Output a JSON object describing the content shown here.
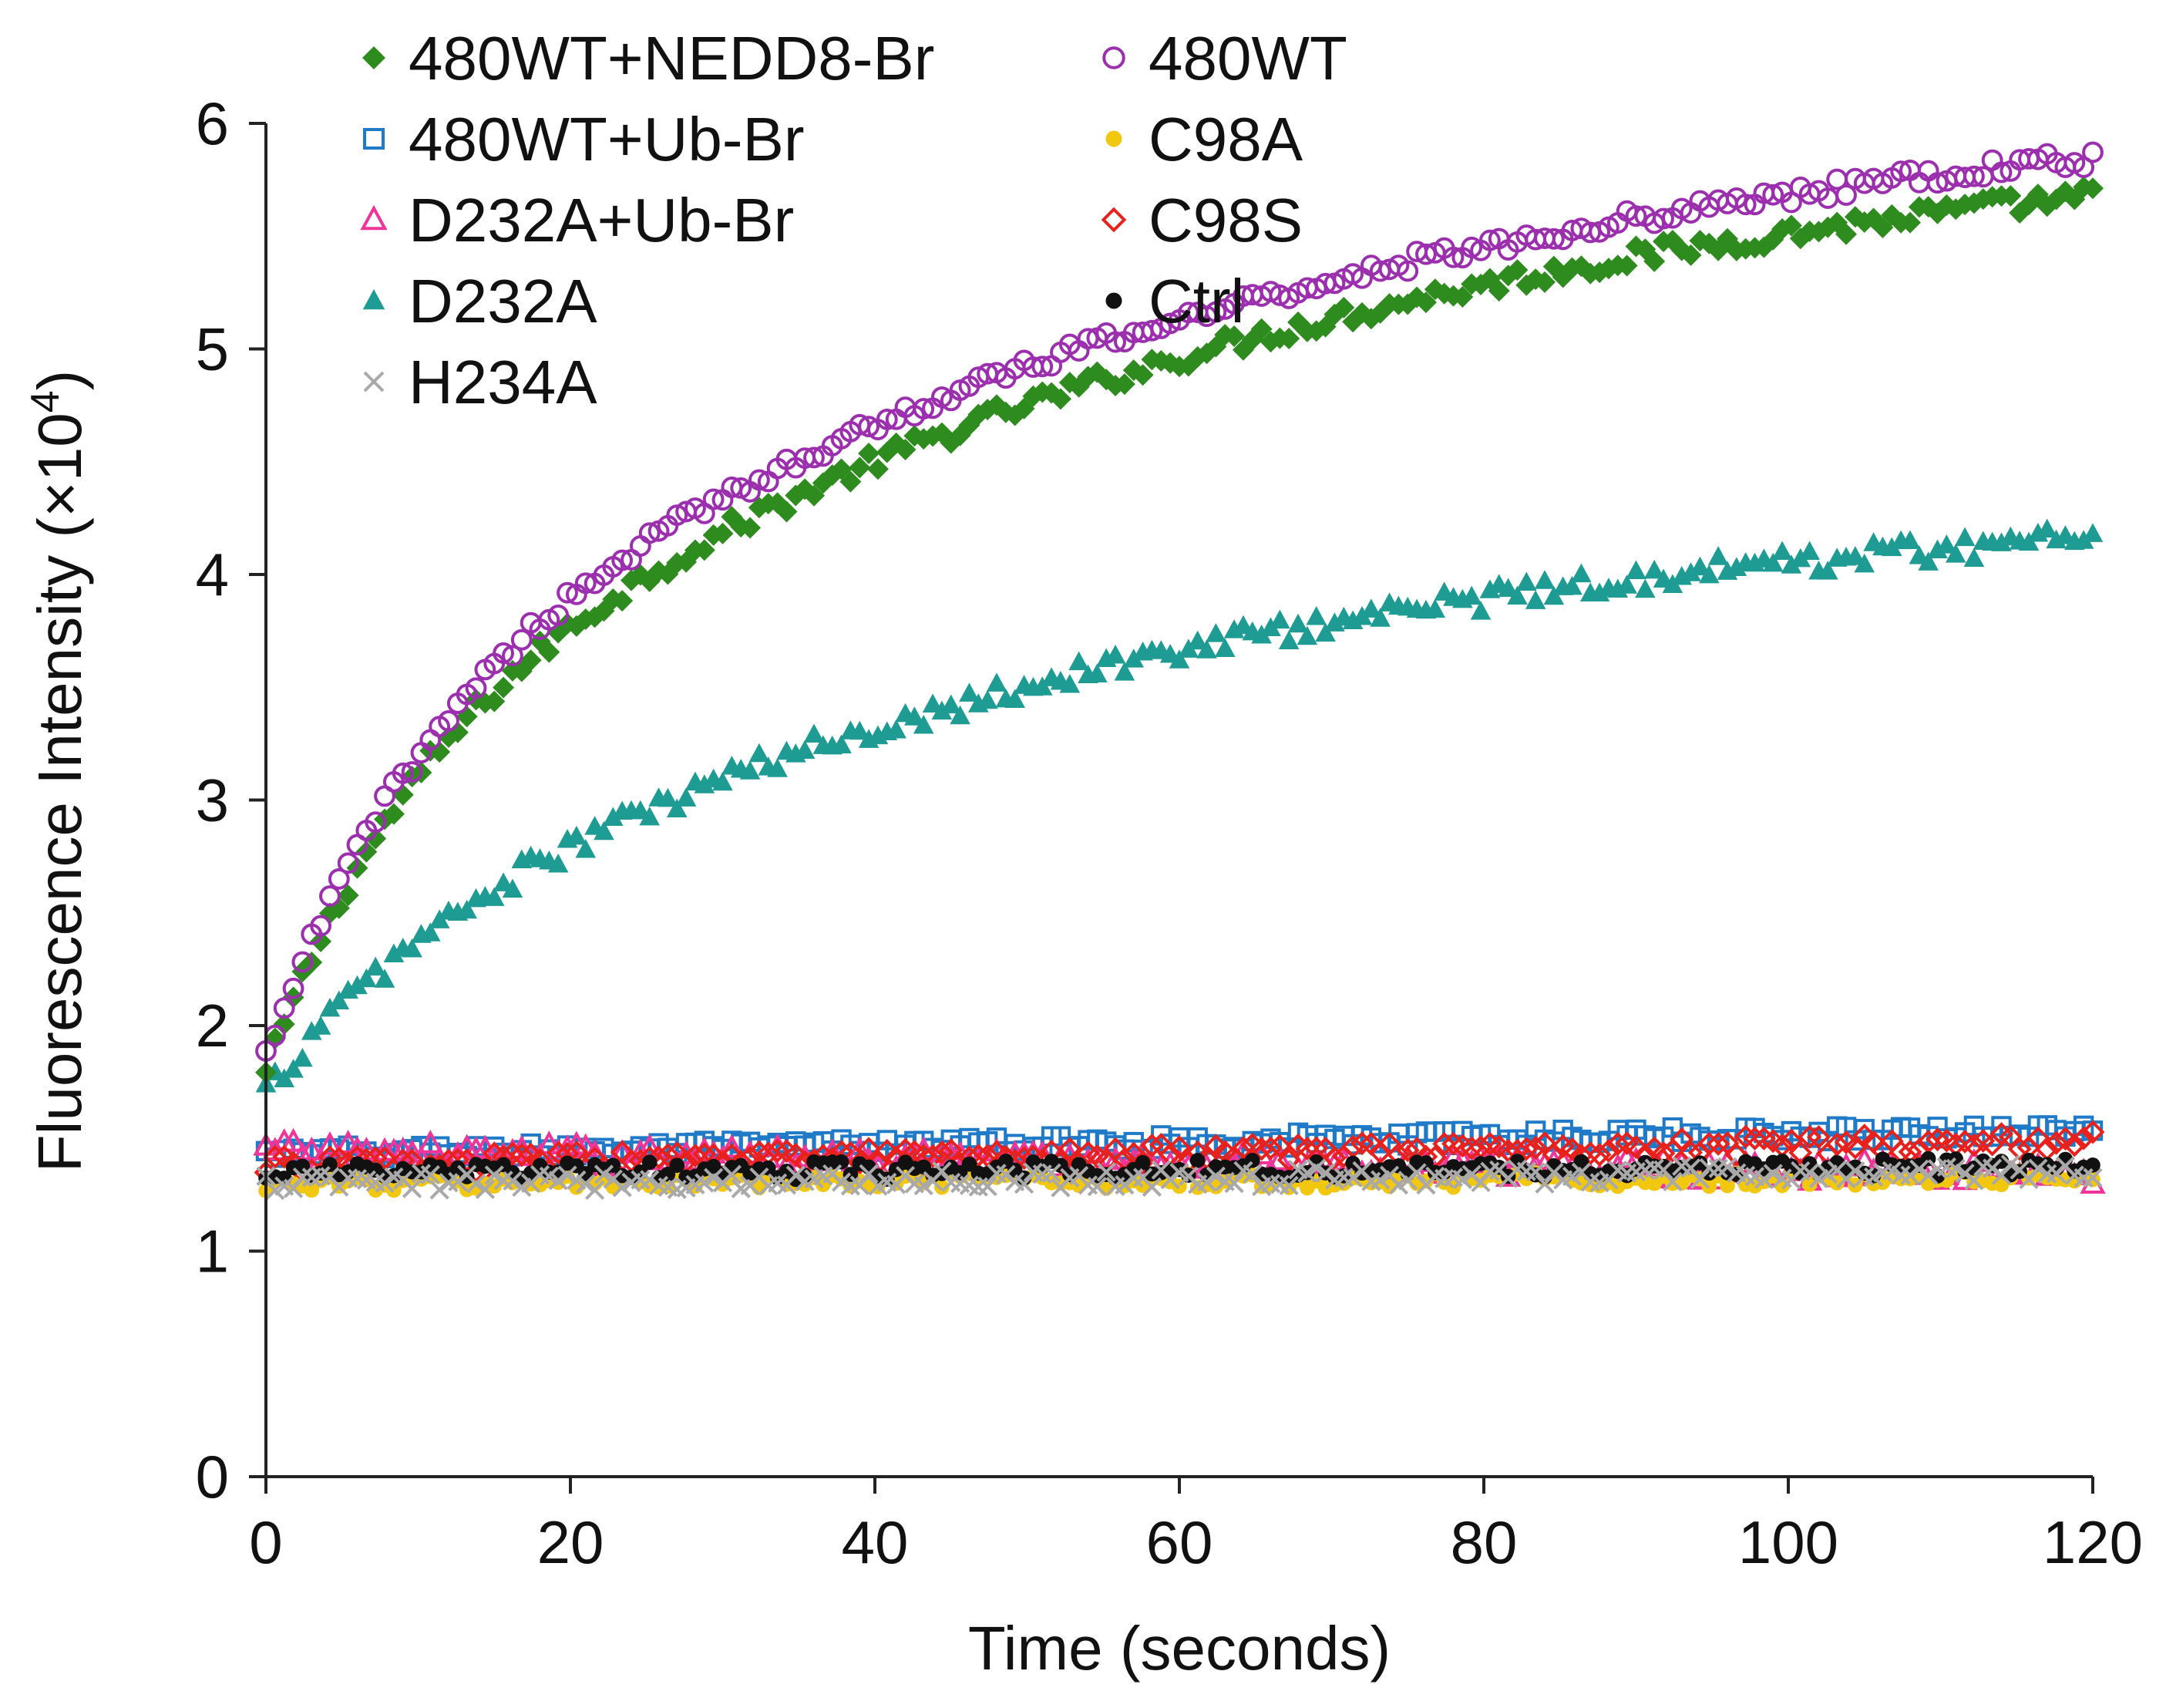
{
  "chart_data": {
    "type": "scatter",
    "title": "",
    "xlabel": "Time (seconds)",
    "ylabel": "Fluorescence Intensity (×10",
    "ylabel_sup": "4",
    "ylabel_close": ")",
    "xlim": [
      0,
      120
    ],
    "ylim": [
      0,
      6
    ],
    "xticks": [
      0,
      20,
      40,
      60,
      80,
      100,
      120
    ],
    "yticks": [
      0,
      1,
      2,
      3,
      4,
      5,
      6
    ],
    "grid": false,
    "legend_position": "top-left",
    "sampling": {
      "x_start": 0,
      "x_step": 0.6,
      "n": 201
    },
    "series": [
      {
        "name": "480WT+NEDD8-Br",
        "marker": "diamond-filled",
        "color": "#2E8B1E",
        "model": {
          "type": "exp2",
          "y0": 1.78,
          "a1": 1.2,
          "k1": 0.12,
          "a2": 3.1,
          "k2": 0.017,
          "noise": 0.05
        }
      },
      {
        "name": "480WT+Ub-Br",
        "marker": "square-open",
        "color": "#1F7AC8",
        "model": {
          "type": "linear",
          "y0": 1.43,
          "slope": 0.0009,
          "noise": 0.035
        }
      },
      {
        "name": "D232A+Ub-Br",
        "marker": "triangle-open",
        "color": "#F0359A",
        "model": {
          "type": "linear",
          "y0": 1.44,
          "slope": -0.0008,
          "noise": 0.05
        }
      },
      {
        "name": "D232A",
        "marker": "triangle-filled",
        "color": "#1E9C94",
        "model": {
          "type": "exp2",
          "y0": 1.7,
          "a1": 0.4,
          "k1": 0.12,
          "a2": 2.3,
          "k2": 0.019,
          "noise": 0.06
        }
      },
      {
        "name": "H234A",
        "marker": "x",
        "color": "#A9A9A9",
        "model": {
          "type": "linear",
          "y0": 1.3,
          "slope": 0.0004,
          "noise": 0.04
        }
      },
      {
        "name": "480WT",
        "marker": "circle-open",
        "color": "#9B2FAE",
        "model": {
          "type": "exp2",
          "y0": 1.85,
          "a1": 1.3,
          "k1": 0.11,
          "a2": 3.1,
          "k2": 0.017,
          "noise": 0.04
        }
      },
      {
        "name": "C98A",
        "marker": "circle-filled",
        "color": "#F2C80F",
        "model": {
          "type": "linear",
          "y0": 1.3,
          "slope": 0.0002,
          "noise": 0.035
        }
      },
      {
        "name": "C98S",
        "marker": "diamond-open",
        "color": "#E8211D",
        "model": {
          "type": "linear",
          "y0": 1.38,
          "slope": 0.0009,
          "noise": 0.04
        }
      },
      {
        "name": "Ctrl",
        "marker": "circle-filled",
        "color": "#111111",
        "model": {
          "type": "linear",
          "y0": 1.35,
          "slope": 0.0002,
          "noise": 0.04
        }
      }
    ]
  }
}
